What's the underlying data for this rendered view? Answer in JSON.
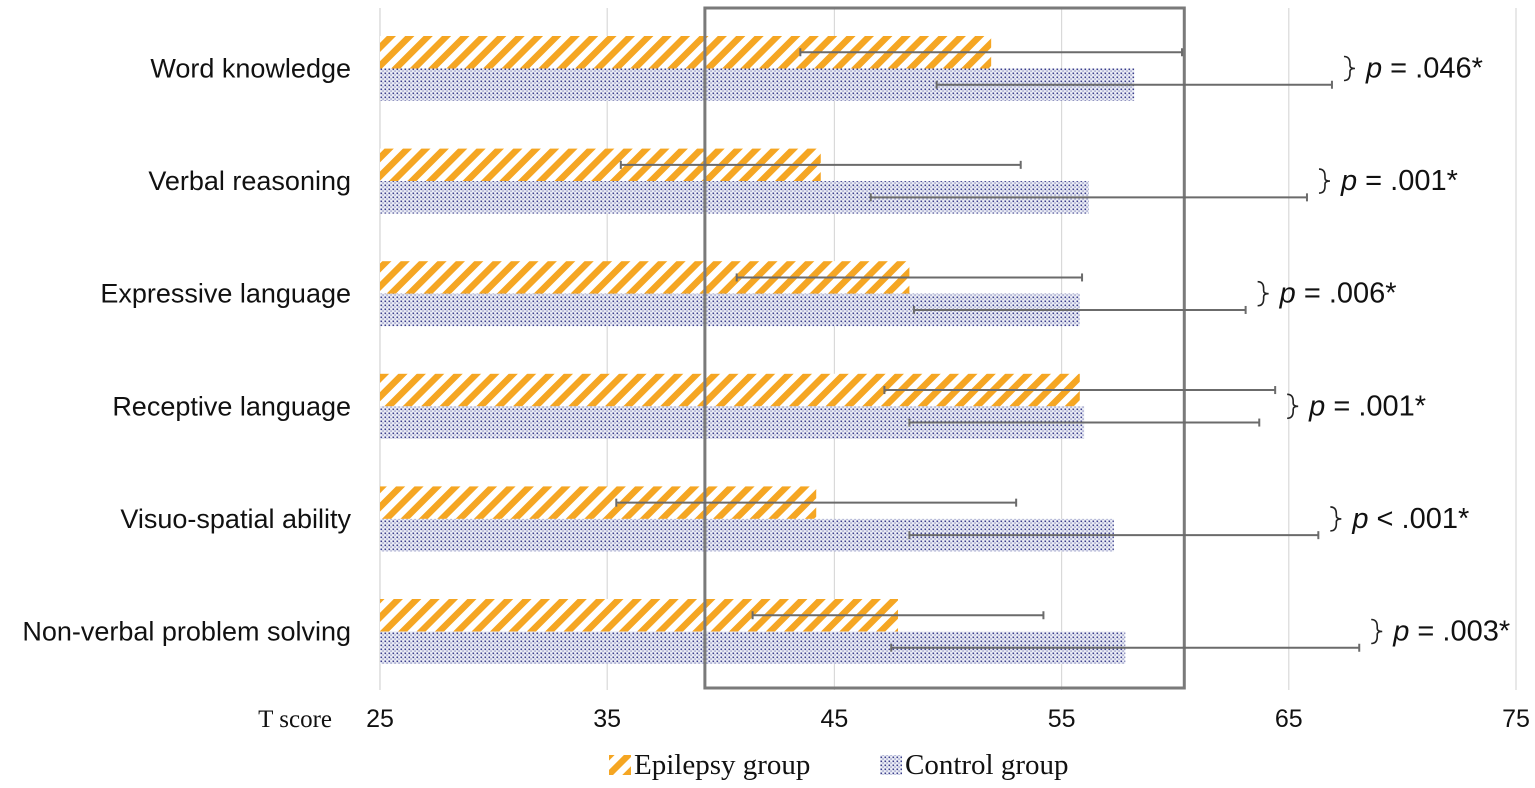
{
  "chart_data": {
    "type": "bar",
    "orientation": "horizontal",
    "title": "",
    "xlabel": "T score",
    "xlim": [
      25,
      75
    ],
    "xticks": [
      25,
      35,
      45,
      55,
      65,
      75
    ],
    "xtick_labels": [
      "25",
      "35",
      "45",
      "55",
      "65",
      "75"
    ],
    "grid": true,
    "highlight_range": [
      39.3,
      60.4
    ],
    "categories": [
      "Word knowledge",
      "Verbal reasoning",
      "Expressive language",
      "Receptive language",
      "Visuo-spatial ability",
      "Non-verbal problem solving"
    ],
    "series": [
      {
        "name": "Epilepsy group",
        "pattern": "diagonal-stripes",
        "color": "#F5A623",
        "values": [
          51.9,
          44.4,
          48.3,
          55.8,
          44.2,
          47.8
        ],
        "error": [
          8.4,
          8.8,
          7.6,
          8.6,
          8.8,
          6.4
        ]
      },
      {
        "name": "Control group",
        "pattern": "dots",
        "color": "#3B3F8C",
        "values": [
          58.2,
          56.2,
          55.8,
          56.0,
          57.3,
          57.8
        ],
        "error": [
          8.7,
          9.6,
          7.3,
          7.7,
          9.0,
          10.3
        ]
      }
    ],
    "annotations": [
      {
        "prefix": "p",
        "text": " = .046*"
      },
      {
        "prefix": "p",
        "text": " = .001*"
      },
      {
        "prefix": "p",
        "text": " = .006*"
      },
      {
        "prefix": "p",
        "text": " = .001*"
      },
      {
        "prefix": "p",
        "text": " < .001*"
      },
      {
        "prefix": "p",
        "text": " = .003*"
      }
    ],
    "legend": [
      "Epilepsy group",
      "Control group"
    ]
  }
}
